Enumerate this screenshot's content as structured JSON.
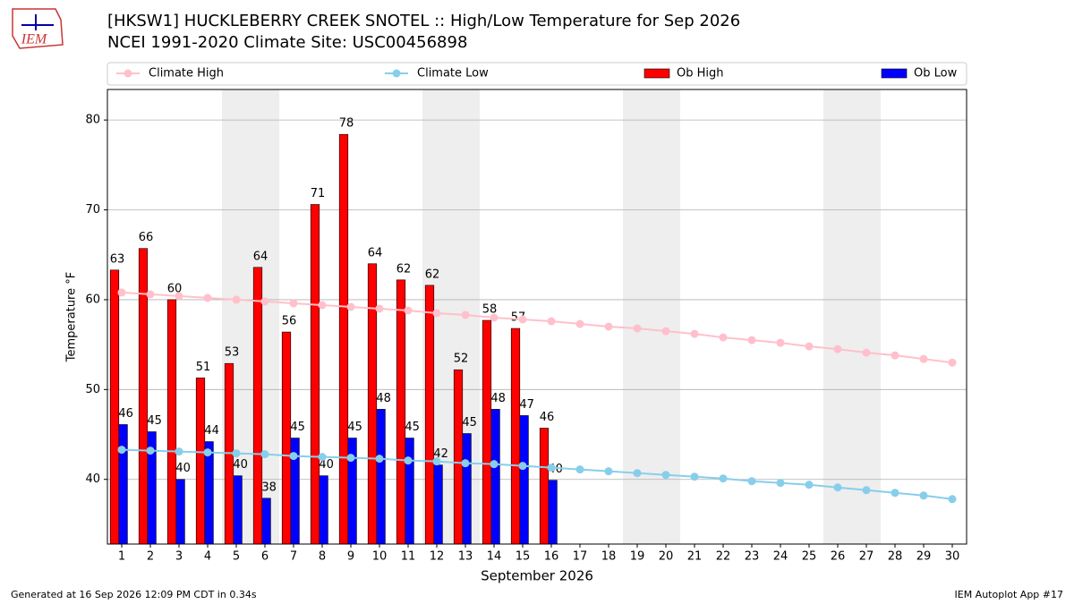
{
  "chart_data": {
    "type": "bar_line",
    "logo_text": "IEM",
    "title": "[HKSW1] HUCKLEBERRY CREEK SNOTEL :: High/Low Temperature for Sep 2026",
    "subtitle": "NCEI 1991-2020 Climate Site: USC00456898",
    "xlabel": "September 2026",
    "ylabel": "Temperature °F",
    "footer_left": "Generated at 16 Sep 2026 12:09 PM CDT in 0.34s",
    "footer_right": "IEM Autoplot App #17",
    "x": [
      1,
      2,
      3,
      4,
      5,
      6,
      7,
      8,
      9,
      10,
      11,
      12,
      13,
      14,
      15,
      16,
      17,
      18,
      19,
      20,
      21,
      22,
      23,
      24,
      25,
      26,
      27,
      28,
      29,
      30
    ],
    "xlim": [
      0.5,
      30.5
    ],
    "xticks": [
      1,
      2,
      3,
      4,
      5,
      6,
      7,
      8,
      9,
      10,
      11,
      12,
      13,
      14,
      15,
      16,
      17,
      18,
      19,
      20,
      21,
      22,
      23,
      24,
      25,
      26,
      27,
      28,
      29,
      30
    ],
    "ylim": [
      32.8,
      83.4
    ],
    "yticks": [
      40,
      50,
      60,
      70,
      80
    ],
    "grid": true,
    "weekend_bands": [
      [
        5,
        6
      ],
      [
        12,
        13
      ],
      [
        19,
        20
      ],
      [
        26,
        27
      ]
    ],
    "band_color": "#eeeeee",
    "series": [
      {
        "name": "Climate High",
        "kind": "line",
        "color": "#ffc0cb",
        "values": [
          60.8,
          60.6,
          60.4,
          60.2,
          60.0,
          59.8,
          59.6,
          59.4,
          59.2,
          59.0,
          58.8,
          58.5,
          58.3,
          58.0,
          57.8,
          57.6,
          57.3,
          57.0,
          56.8,
          56.5,
          56.2,
          55.8,
          55.5,
          55.2,
          54.8,
          54.5,
          54.1,
          53.8,
          53.4,
          53.0
        ]
      },
      {
        "name": "Climate Low",
        "kind": "line",
        "color": "#87ceeb",
        "values": [
          43.3,
          43.2,
          43.1,
          43.0,
          42.9,
          42.8,
          42.6,
          42.5,
          42.4,
          42.3,
          42.1,
          42.0,
          41.8,
          41.7,
          41.5,
          41.3,
          41.1,
          40.9,
          40.7,
          40.5,
          40.3,
          40.1,
          39.8,
          39.6,
          39.4,
          39.1,
          38.8,
          38.5,
          38.2,
          37.8
        ]
      },
      {
        "name": "Ob High",
        "kind": "bar",
        "color": "#ff0000",
        "values": [
          63.3,
          65.7,
          60.0,
          51.3,
          52.9,
          63.6,
          56.4,
          70.6,
          78.4,
          64.0,
          62.2,
          61.6,
          52.2,
          57.7,
          56.8,
          45.7,
          null,
          null,
          null,
          null,
          null,
          null,
          null,
          null,
          null,
          null,
          null,
          null,
          null,
          null
        ],
        "value_labels": [
          "63",
          "66",
          "60",
          "51",
          "53",
          "64",
          "56",
          "71",
          "78",
          "64",
          "62",
          "62",
          "52",
          "58",
          "57",
          "46",
          null,
          null,
          null,
          null,
          null,
          null,
          null,
          null,
          null,
          null,
          null,
          null,
          null,
          null
        ]
      },
      {
        "name": "Ob Low",
        "kind": "bar",
        "color": "#0000ff",
        "values": [
          46.1,
          45.3,
          40.0,
          44.2,
          40.4,
          37.9,
          44.6,
          40.4,
          44.6,
          47.8,
          44.6,
          41.6,
          45.1,
          47.8,
          47.1,
          39.9,
          null,
          null,
          null,
          null,
          null,
          null,
          null,
          null,
          null,
          null,
          null,
          null,
          null,
          null
        ],
        "value_labels": [
          "46",
          "45",
          "40",
          "44",
          "40",
          "38",
          "45",
          "40",
          "45",
          "48",
          "45",
          "42",
          "45",
          "48",
          "47",
          "40",
          null,
          null,
          null,
          null,
          null,
          null,
          null,
          null,
          null,
          null,
          null,
          null,
          null,
          null
        ]
      }
    ]
  }
}
